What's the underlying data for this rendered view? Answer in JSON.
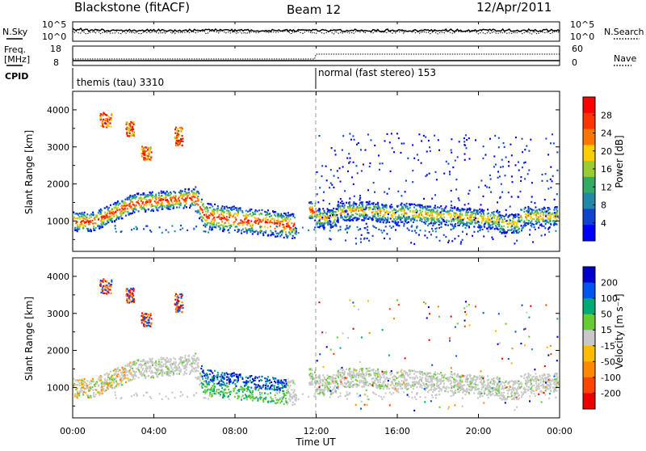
{
  "header": {
    "station": "Blackstone (fitACF)",
    "beam": "Beam 12",
    "date": "12/Apr/2011"
  },
  "top_panels": {
    "nsky_label": "N.Sky",
    "nsearch_label": "N.Search",
    "nsky_ticks": [
      "10^5",
      "10^0"
    ],
    "freq_label_line1": "Freq.",
    "freq_label_line2": "[MHz]",
    "freq_ticks": [
      "18",
      "8"
    ],
    "nave_label": "Nave",
    "nave_ticks": [
      "60",
      "0"
    ],
    "cpid_label": "CPID",
    "cpid_1": "themis (tau) 3310",
    "cpid_2": "normal (fast stereo) 153"
  },
  "chart_data": [
    {
      "type": "heatmap",
      "ylabel": "Slant Range [km]",
      "xlabel": "Time UT",
      "x_ticks": [
        "00:00",
        "04:00",
        "08:00",
        "12:00",
        "16:00",
        "20:00",
        "00:00"
      ],
      "y_ticks": [
        1000,
        2000,
        3000,
        4000
      ],
      "ylim": [
        180,
        4500
      ],
      "xlim_hours": [
        0,
        24
      ],
      "colorbar_label": "Power [dB]",
      "colorbar_ticks": [
        "28",
        "24",
        "20",
        "16",
        "12",
        "8",
        "4"
      ],
      "colorbar_colors": [
        "#ff0000",
        "#ff3300",
        "#ff7700",
        "#ffcc00",
        "#99cc33",
        "#33aa66",
        "#2288aa",
        "#1144cc",
        "#0000ff"
      ]
    },
    {
      "type": "heatmap",
      "ylabel": "Slant Range [km]",
      "xlabel": "Time UT",
      "x_ticks": [
        "00:00",
        "04:00",
        "08:00",
        "12:00",
        "16:00",
        "20:00",
        "00:00"
      ],
      "y_ticks": [
        1000,
        2000,
        3000,
        4000
      ],
      "ylim": [
        180,
        4500
      ],
      "xlim_hours": [
        0,
        24
      ],
      "colorbar_label": "Velocity [m s⁻¹]",
      "colorbar_ticks": [
        "200",
        "100",
        "50",
        "15",
        "-15",
        "-50",
        "-100",
        "-200"
      ],
      "colorbar_colors": [
        "#0000cc",
        "#0055ee",
        "#00aa77",
        "#66cc33",
        "#c8c8c8",
        "#ffbb00",
        "#ff8800",
        "#ff4400",
        "#ee0000"
      ]
    }
  ],
  "time_axis_label": "Time UT"
}
